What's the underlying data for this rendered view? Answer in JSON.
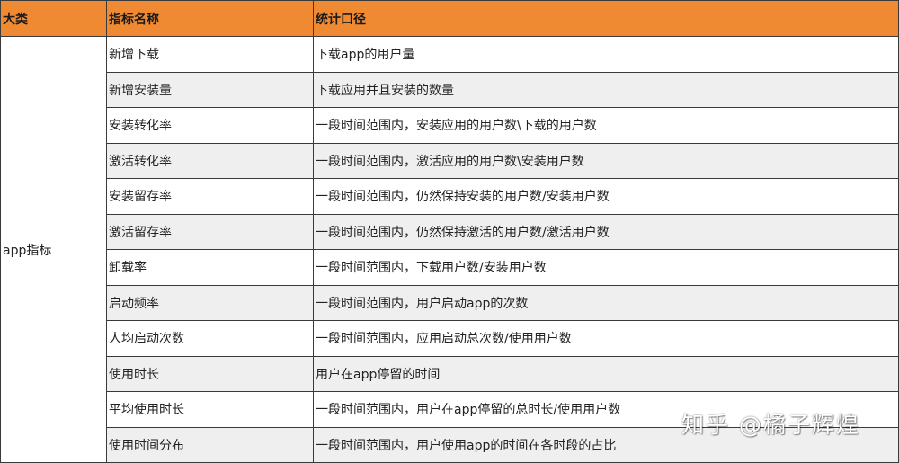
{
  "table": {
    "headers": [
      "大类",
      "指标名称",
      "统计口径"
    ],
    "category": "app指标",
    "rows": [
      {
        "metric": "新增下载",
        "desc": "下载app的用户量"
      },
      {
        "metric": "新增安装量",
        "desc": "下载应用并且安装的数量"
      },
      {
        "metric": "安装转化率",
        "desc": "一段时间范围内，安装应用的用户数\\下载的用户数"
      },
      {
        "metric": "激活转化率",
        "desc": "一段时间范围内，激活应用的用户数\\安装用户数"
      },
      {
        "metric": "安装留存率",
        "desc": "一段时间范围内，仍然保持安装的用户数/安装用户数"
      },
      {
        "metric": "激活留存率",
        "desc": "一段时间范围内，仍然保持激活的用户数/激活用户数"
      },
      {
        "metric": "卸载率",
        "desc": "一段时间范围内，下载用户数/安装用户数"
      },
      {
        "metric": "启动频率",
        "desc": "一段时间范围内，用户启动app的次数"
      },
      {
        "metric": "人均启动次数",
        "desc": "一段时间范围内，应用启动总次数/使用用户数"
      },
      {
        "metric": "使用时长",
        "desc": "用户在app停留的时间"
      },
      {
        "metric": "平均使用时长",
        "desc": "一段时间范围内，用户在app停留的总时长/使用用户数"
      },
      {
        "metric": "使用时间分布",
        "desc": "一段时间范围内，用户使用app的时间在各时段的占比"
      }
    ]
  },
  "watermark": "知乎 @橘子辉煌",
  "colors": {
    "header_bg": "#f08a32",
    "alt_row_bg": "#efefef",
    "border": "#3a3a3a"
  }
}
